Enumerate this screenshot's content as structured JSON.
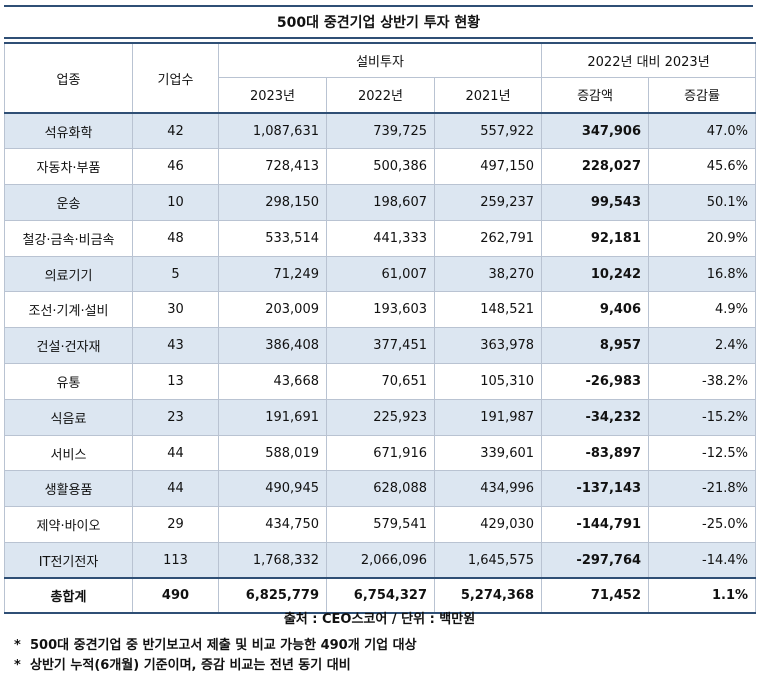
{
  "title": "500대 중견기업 상반기 투자 현황",
  "headers": {
    "industry": "업종",
    "count": "기업수",
    "capex": "설비투자",
    "comparison": "2022년 대비 2023년",
    "y2023": "2023년",
    "y2022": "2022년",
    "y2021": "2021년",
    "change": "증감액",
    "rate": "증감률"
  },
  "rows": [
    {
      "industry": "석유화학",
      "count": "42",
      "y2023": "1,087,631",
      "y2022": "739,725",
      "y2021": "557,922",
      "change": "347,906",
      "rate": "47.0%"
    },
    {
      "industry": "자동차·부품",
      "count": "46",
      "y2023": "728,413",
      "y2022": "500,386",
      "y2021": "497,150",
      "change": "228,027",
      "rate": "45.6%"
    },
    {
      "industry": "운송",
      "count": "10",
      "y2023": "298,150",
      "y2022": "198,607",
      "y2021": "259,237",
      "change": "99,543",
      "rate": "50.1%"
    },
    {
      "industry": "철강·금속·비금속",
      "count": "48",
      "y2023": "533,514",
      "y2022": "441,333",
      "y2021": "262,791",
      "change": "92,181",
      "rate": "20.9%"
    },
    {
      "industry": "의료기기",
      "count": "5",
      "y2023": "71,249",
      "y2022": "61,007",
      "y2021": "38,270",
      "change": "10,242",
      "rate": "16.8%"
    },
    {
      "industry": "조선·기계·설비",
      "count": "30",
      "y2023": "203,009",
      "y2022": "193,603",
      "y2021": "148,521",
      "change": "9,406",
      "rate": "4.9%"
    },
    {
      "industry": "건설·건자재",
      "count": "43",
      "y2023": "386,408",
      "y2022": "377,451",
      "y2021": "363,978",
      "change": "8,957",
      "rate": "2.4%"
    },
    {
      "industry": "유통",
      "count": "13",
      "y2023": "43,668",
      "y2022": "70,651",
      "y2021": "105,310",
      "change": "-26,983",
      "rate": "-38.2%"
    },
    {
      "industry": "식음료",
      "count": "23",
      "y2023": "191,691",
      "y2022": "225,923",
      "y2021": "191,987",
      "change": "-34,232",
      "rate": "-15.2%"
    },
    {
      "industry": "서비스",
      "count": "44",
      "y2023": "588,019",
      "y2022": "671,916",
      "y2021": "339,601",
      "change": "-83,897",
      "rate": "-12.5%"
    },
    {
      "industry": "생활용품",
      "count": "44",
      "y2023": "490,945",
      "y2022": "628,088",
      "y2021": "434,996",
      "change": "-137,143",
      "rate": "-21.8%"
    },
    {
      "industry": "제약·바이오",
      "count": "29",
      "y2023": "434,750",
      "y2022": "579,541",
      "y2021": "429,030",
      "change": "-144,791",
      "rate": "-25.0%"
    },
    {
      "industry": "IT전기전자",
      "count": "113",
      "y2023": "1,768,332",
      "y2022": "2,066,096",
      "y2021": "1,645,575",
      "change": "-297,764",
      "rate": "-14.4%"
    }
  ],
  "total": {
    "industry": "총합계",
    "count": "490",
    "y2023": "6,825,779",
    "y2022": "6,754,327",
    "y2021": "5,274,368",
    "change": "71,452",
    "rate": "1.1%"
  },
  "source": "출처 : CEO스코어 / 단위 : 백만원",
  "notes": [
    {
      "marker": "*",
      "text": "500대 중견기업 중 반기보고서 제출 및 비교 가능한 490개 기업 대상"
    },
    {
      "marker": "*",
      "text": "상반기 누적(6개월) 기준이며, 증감 비교는 전년 동기 대비"
    }
  ],
  "colors": {
    "shade": "#dce6f1",
    "rule": "#2f4f75",
    "grid": "#b9c3d2"
  }
}
